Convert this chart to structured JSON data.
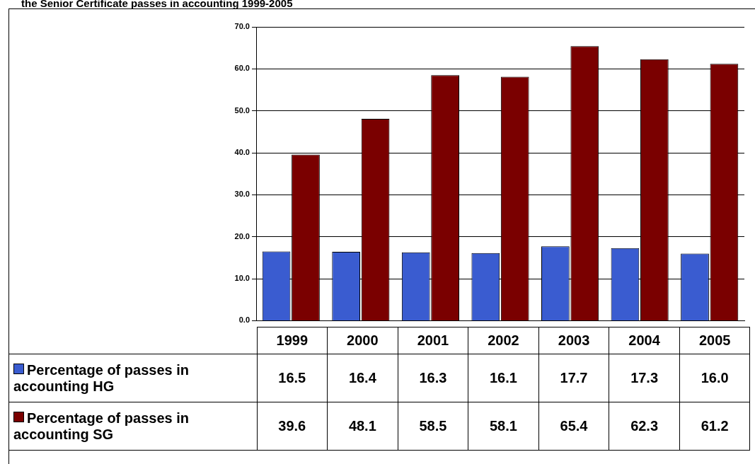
{
  "chart_data": {
    "type": "bar",
    "title": "the Senior Certificate passes in accounting 1999-2005",
    "categories": [
      "1999",
      "2000",
      "2001",
      "2002",
      "2003",
      "2004",
      "2005"
    ],
    "series": [
      {
        "name": "Percentage of passes in accounting HG",
        "color": "#3a5cd0",
        "values": [
          16.5,
          16.4,
          16.3,
          16.1,
          17.7,
          17.3,
          16.0
        ],
        "value_labels": [
          "16.5",
          "16.4",
          "16.3",
          "16.1",
          "17.7",
          "17.3",
          "16.0"
        ]
      },
      {
        "name": "Percentage of passes in accounting SG",
        "color": "#7a0000",
        "values": [
          39.6,
          48.1,
          58.5,
          58.1,
          65.4,
          62.3,
          61.2
        ],
        "value_labels": [
          "39.6",
          "48.1",
          "58.5",
          "58.1",
          "65.4",
          "62.3",
          "61.2"
        ]
      }
    ],
    "ylim": [
      0,
      70
    ],
    "yticks": [
      {
        "value": 0,
        "label": "0.0"
      },
      {
        "value": 10,
        "label": "10.0"
      },
      {
        "value": 20,
        "label": "20.0"
      },
      {
        "value": 30,
        "label": "30.0"
      },
      {
        "value": 40,
        "label": "40.0"
      },
      {
        "value": 50,
        "label": "50.0"
      },
      {
        "value": 60,
        "label": "60.0"
      },
      {
        "value": 70,
        "label": "70.0"
      }
    ],
    "grid": "y",
    "legend": "bottom"
  }
}
